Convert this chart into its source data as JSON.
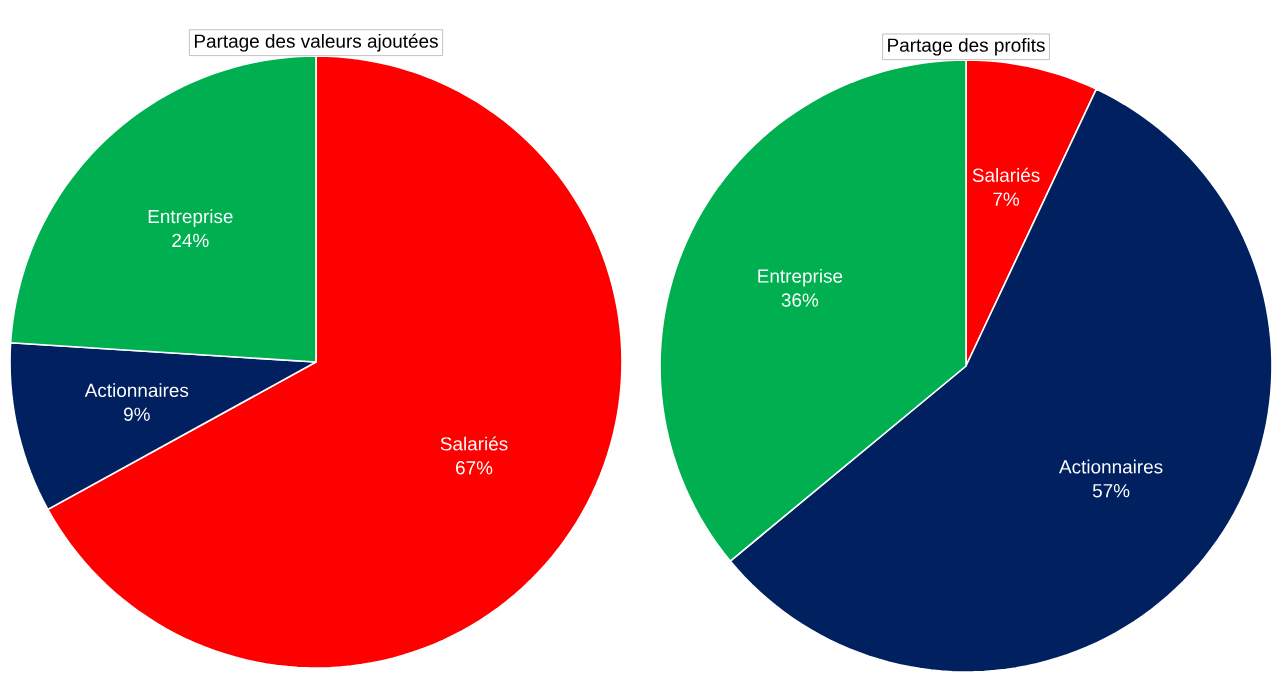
{
  "chart_data": [
    {
      "type": "pie",
      "title": "Partage des valeurs ajoutées",
      "categories": [
        "Salariés",
        "Actionnaires",
        "Entreprise"
      ],
      "values": [
        67,
        9,
        24
      ],
      "value_labels": [
        "67%",
        "9%",
        "24%"
      ],
      "colors": [
        "#ff0000",
        "#002060",
        "#00b050"
      ]
    },
    {
      "type": "pie",
      "title": "Partage des profits",
      "categories": [
        "Salariés",
        "Actionnaires",
        "Entreprise"
      ],
      "values": [
        7,
        57,
        36
      ],
      "value_labels": [
        "7%",
        "57%",
        "36%"
      ],
      "colors": [
        "#ff0000",
        "#002060",
        "#00b050"
      ]
    }
  ]
}
